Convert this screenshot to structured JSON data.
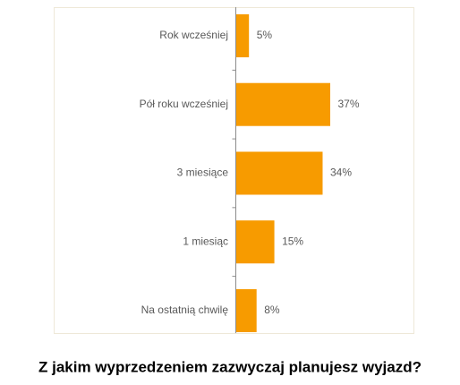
{
  "chart_data": {
    "type": "hbar",
    "title": "Z jakim wyprzedzeniem zazwyczaj planujesz wyjazd?",
    "categories": [
      "Rok wcześniej",
      "Pół roku wcześniej",
      "3 miesiące",
      "1 miesiąc",
      "Na ostatnią chwilę"
    ],
    "values": [
      5,
      37,
      34,
      15,
      8
    ],
    "value_labels": [
      "5%",
      "37%",
      "34%",
      "15%",
      "8%"
    ],
    "color": "#f79b00"
  }
}
